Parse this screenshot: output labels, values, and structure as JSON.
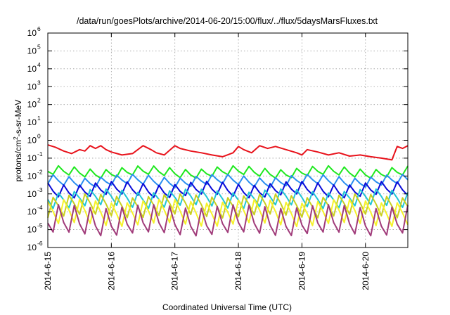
{
  "chart_data": {
    "type": "line",
    "title": "/data/run/goesPlots/archive/2014-06-20/15:00/flux/../flux/5daysMarsFluxes.txt",
    "xlabel": "Coordinated Universal Time (UTC)",
    "ylabel": {
      "prefix": "protons/cm",
      "superscript": "2",
      "suffix": "-s-sr-MeV"
    },
    "y_scale": "log",
    "ylim": [
      1e-06,
      1000000.0
    ],
    "y_ticks": [
      {
        "base": "10",
        "exp": "-6",
        "value": 1e-06
      },
      {
        "base": "10",
        "exp": "-5",
        "value": 1e-05
      },
      {
        "base": "10",
        "exp": "-4",
        "value": 0.0001
      },
      {
        "base": "10",
        "exp": "-3",
        "value": 0.001
      },
      {
        "base": "10",
        "exp": "-2",
        "value": 0.01
      },
      {
        "base": "10",
        "exp": "-1",
        "value": 0.1
      },
      {
        "base": "10",
        "exp": "0",
        "value": 1
      },
      {
        "base": "10",
        "exp": "1",
        "value": 10
      },
      {
        "base": "10",
        "exp": "2",
        "value": 100
      },
      {
        "base": "10",
        "exp": "3",
        "value": 1000
      },
      {
        "base": "10",
        "exp": "4",
        "value": 10000
      },
      {
        "base": "10",
        "exp": "5",
        "value": 100000
      },
      {
        "base": "10",
        "exp": "6",
        "value": 1000000
      }
    ],
    "x_ticks": [
      "2014-6-15",
      "2014-6-16",
      "2014-6-17",
      "2014-6-18",
      "2014-6-19",
      "2014-6-20"
    ],
    "xlim": [
      "2014-06-15T00:00",
      "2014-06-20T16:00"
    ],
    "grid": true,
    "legend": "none",
    "series": [
      {
        "color": "#e8121b",
        "x": [
          "2014-06-15T00:00",
          "2014-06-15T03:00",
          "2014-06-15T06:00",
          "2014-06-15T09:00",
          "2014-06-15T12:00",
          "2014-06-15T14:00",
          "2014-06-15T16:00",
          "2014-06-15T18:00",
          "2014-06-15T20:00",
          "2014-06-15T22:00",
          "2014-06-16T00:00",
          "2014-06-16T04:00",
          "2014-06-16T08:00",
          "2014-06-16T12:00",
          "2014-06-16T15:00",
          "2014-06-16T17:00",
          "2014-06-16T20:00",
          "2014-06-17T00:00",
          "2014-06-17T02:00",
          "2014-06-17T06:00",
          "2014-06-17T10:00",
          "2014-06-17T14:00",
          "2014-06-17T18:00",
          "2014-06-17T22:00",
          "2014-06-18T00:00",
          "2014-06-18T02:00",
          "2014-06-18T05:00",
          "2014-06-18T08:00",
          "2014-06-18T11:00",
          "2014-06-18T14:00",
          "2014-06-18T18:00",
          "2014-06-18T22:00",
          "2014-06-19T00:00",
          "2014-06-19T02:00",
          "2014-06-19T06:00",
          "2014-06-19T10:00",
          "2014-06-19T14:00",
          "2014-06-19T18:00",
          "2014-06-19T22:00",
          "2014-06-20T02:00",
          "2014-06-20T06:00",
          "2014-06-20T10:00",
          "2014-06-20T12:00",
          "2014-06-20T14:00",
          "2014-06-20T16:00"
        ],
        "values": [
          0.55,
          0.4,
          0.25,
          0.18,
          0.3,
          0.25,
          0.5,
          0.35,
          0.5,
          0.3,
          0.22,
          0.15,
          0.18,
          0.5,
          0.3,
          0.2,
          0.15,
          0.5,
          0.35,
          0.25,
          0.2,
          0.15,
          0.12,
          0.2,
          0.45,
          0.3,
          0.2,
          0.5,
          0.35,
          0.45,
          0.3,
          0.2,
          0.15,
          0.3,
          0.22,
          0.15,
          0.2,
          0.13,
          0.15,
          0.12,
          0.1,
          0.08,
          0.45,
          0.35,
          0.5
        ]
      },
      {
        "color": "#1ee81e",
        "base": 0.015,
        "peak": 0.03,
        "dip": 0.01
      },
      {
        "color": "#2a8ef0",
        "base": 0.005,
        "peak": 0.01,
        "dip": 0.003
      },
      {
        "color": "#0a0ad8",
        "base": 0.0015,
        "peak": 0.004,
        "dip": 0.0008
      },
      {
        "color": "#21c6d6",
        "base": 0.0006,
        "peak": 0.0015,
        "dip": 0.0002
      },
      {
        "color": "#c9cf1f",
        "base": 0.00025,
        "peak": 0.0008,
        "dip": 6e-05
      },
      {
        "color": "#f6f22a",
        "base": 0.0001,
        "peak": 0.0004,
        "dip": 2e-05
      },
      {
        "color": "#a03b7a",
        "base": 2e-05,
        "peak": 0.0002,
        "dip": 6e-06
      }
    ]
  }
}
